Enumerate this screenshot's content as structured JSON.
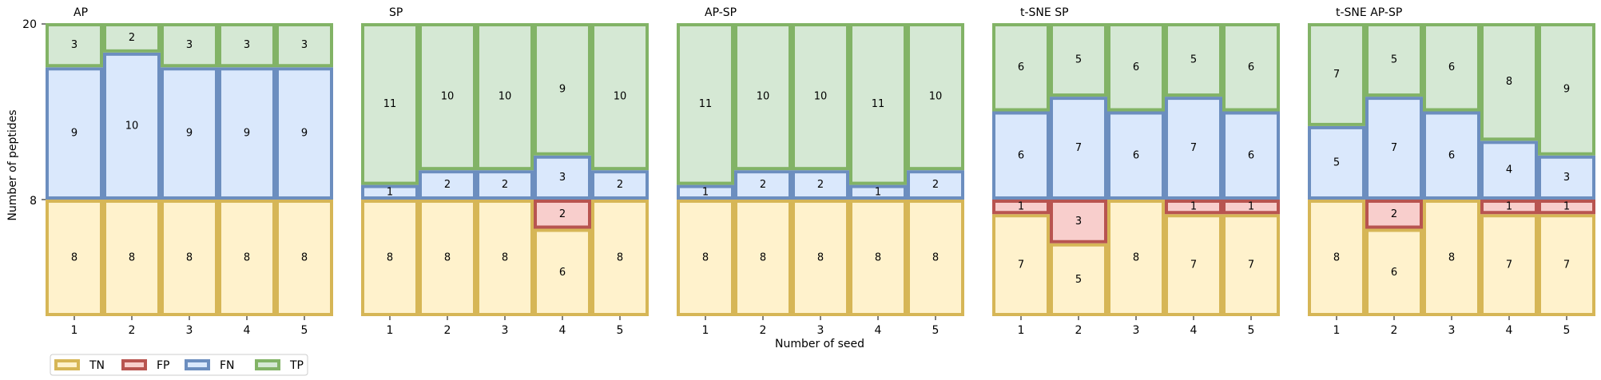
{
  "chart_data": {
    "type": "bar",
    "xlabel": "Number of seed",
    "ylabel": "Number of peptides",
    "yticks": [
      "20",
      "8"
    ],
    "categories": [
      "1",
      "2",
      "3",
      "4",
      "5"
    ],
    "colors": {
      "TN": {
        "fill": "#fff2cc",
        "stroke": "#d6b656"
      },
      "FP": {
        "fill": "#f8cecc",
        "stroke": "#b85450"
      },
      "FN": {
        "fill": "#dae8fc",
        "stroke": "#6c8ebf"
      },
      "TP": {
        "fill": "#d5e8d4",
        "stroke": "#82b366"
      }
    },
    "legend": [
      "TN",
      "FP",
      "FN",
      "TP"
    ],
    "legend_position": "bottom-left",
    "panels": [
      {
        "title": "AP",
        "series": [
          {
            "name": "TN",
            "values": [
              8,
              8,
              8,
              8,
              8
            ]
          },
          {
            "name": "FP",
            "values": [
              0,
              0,
              0,
              0,
              0
            ]
          },
          {
            "name": "FN",
            "values": [
              9,
              10,
              9,
              9,
              9
            ]
          },
          {
            "name": "TP",
            "values": [
              3,
              2,
              3,
              3,
              3
            ]
          }
        ]
      },
      {
        "title": "SP",
        "series": [
          {
            "name": "TN",
            "values": [
              8,
              8,
              8,
              6,
              8
            ]
          },
          {
            "name": "FP",
            "values": [
              0,
              0,
              0,
              2,
              0
            ]
          },
          {
            "name": "FN",
            "values": [
              1,
              2,
              2,
              3,
              2
            ]
          },
          {
            "name": "TP",
            "values": [
              11,
              10,
              10,
              9,
              10
            ]
          }
        ]
      },
      {
        "title": "AP-SP",
        "series": [
          {
            "name": "TN",
            "values": [
              8,
              8,
              8,
              8,
              8
            ]
          },
          {
            "name": "FP",
            "values": [
              0,
              0,
              0,
              0,
              0
            ]
          },
          {
            "name": "FN",
            "values": [
              1,
              2,
              2,
              1,
              2
            ]
          },
          {
            "name": "TP",
            "values": [
              11,
              10,
              10,
              11,
              10
            ]
          }
        ]
      },
      {
        "title": "t-SNE SP",
        "series": [
          {
            "name": "TN",
            "values": [
              7,
              5,
              8,
              7,
              7
            ]
          },
          {
            "name": "FP",
            "values": [
              1,
              3,
              0,
              1,
              1
            ]
          },
          {
            "name": "FN",
            "values": [
              6,
              7,
              6,
              7,
              6
            ]
          },
          {
            "name": "TP",
            "values": [
              6,
              5,
              6,
              5,
              6
            ]
          }
        ]
      },
      {
        "title": "t-SNE AP-SP",
        "series": [
          {
            "name": "TN",
            "values": [
              8,
              6,
              8,
              7,
              7
            ]
          },
          {
            "name": "FP",
            "values": [
              0,
              2,
              0,
              1,
              1
            ]
          },
          {
            "name": "FN",
            "values": [
              5,
              7,
              6,
              4,
              3
            ]
          },
          {
            "name": "TP",
            "values": [
              7,
              5,
              6,
              8,
              9
            ]
          }
        ]
      }
    ]
  }
}
